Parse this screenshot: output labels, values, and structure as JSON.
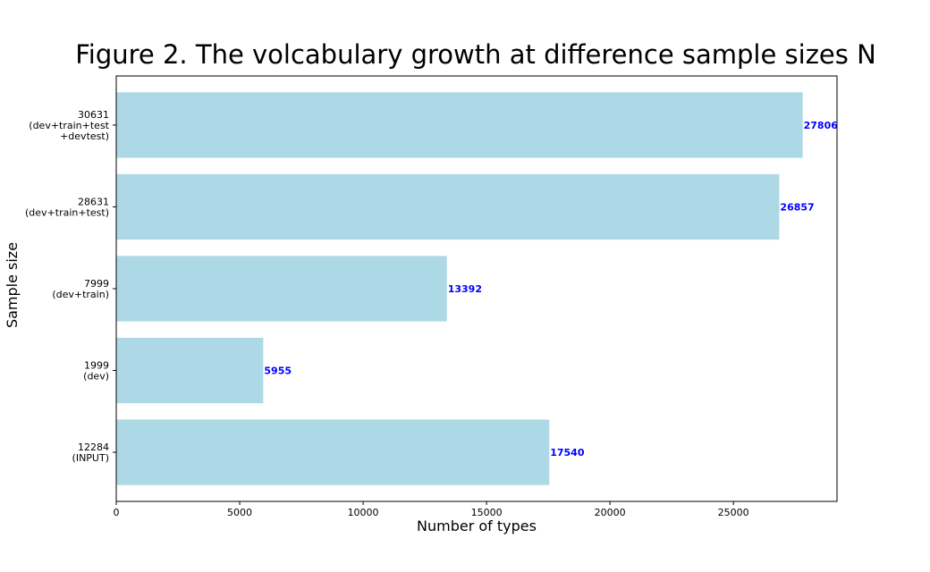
{
  "chart_data": {
    "type": "bar",
    "orientation": "horizontal",
    "title": "Figure 2. The volcabulary growth at difference sample sizes N",
    "xlabel": "Number of types",
    "ylabel": "Sample size",
    "xlim": [
      0,
      29196
    ],
    "xticks": [
      0,
      5000,
      10000,
      15000,
      20000,
      25000
    ],
    "categories": [
      [
        "12284",
        "(INPUT)"
      ],
      [
        "1999",
        "(dev)"
      ],
      [
        "7999",
        "(dev+train)"
      ],
      [
        "28631",
        "(dev+train+test)"
      ],
      [
        "30631",
        "(dev+train+test",
        "+devtest)"
      ]
    ],
    "values": [
      17540,
      5955,
      13392,
      26857,
      27806
    ],
    "data_labels": [
      "17540",
      "5955",
      "13392",
      "26857",
      "27806"
    ],
    "bar_color": "#add8e6",
    "label_color": "#0000ff",
    "grid": false,
    "legend": "none"
  }
}
